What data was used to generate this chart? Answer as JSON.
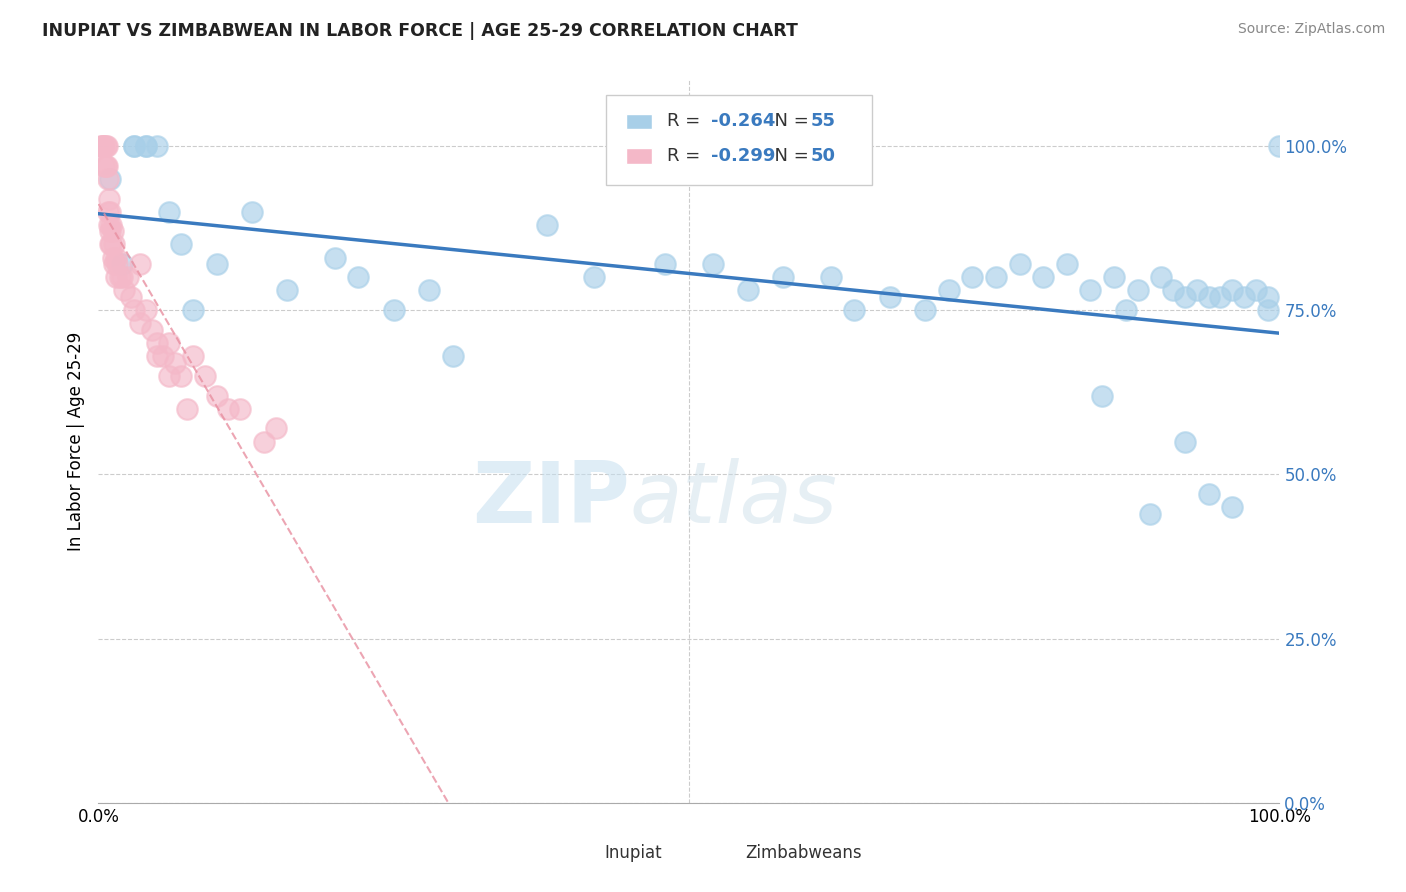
{
  "title": "INUPIAT VS ZIMBABWEAN IN LABOR FORCE | AGE 25-29 CORRELATION CHART",
  "source": "Source: ZipAtlas.com",
  "ylabel": "In Labor Force | Age 25-29",
  "legend_label1": "Inupiat",
  "legend_label2": "Zimbabweans",
  "R1": -0.264,
  "N1": 55,
  "R2": -0.299,
  "N2": 50,
  "blue_color": "#a8cfe8",
  "pink_color": "#f4b8c8",
  "trend_blue": "#3a7abf",
  "trend_pink": "#e88fa0",
  "blue_x": [
    0.01,
    0.02,
    0.03,
    0.03,
    0.04,
    0.04,
    0.05,
    0.06,
    0.07,
    0.08,
    0.1,
    0.13,
    0.16,
    0.2,
    0.22,
    0.25,
    0.28,
    0.3,
    0.38,
    0.42,
    0.48,
    0.52,
    0.55,
    0.58,
    0.62,
    0.64,
    0.67,
    0.7,
    0.72,
    0.74,
    0.76,
    0.78,
    0.8,
    0.82,
    0.84,
    0.86,
    0.88,
    0.9,
    0.91,
    0.92,
    0.93,
    0.94,
    0.95,
    0.96,
    0.97,
    0.98,
    0.99,
    1.0,
    0.85,
    0.87,
    0.89,
    0.92,
    0.94,
    0.96,
    0.99
  ],
  "blue_y": [
    0.95,
    0.82,
    1.0,
    1.0,
    1.0,
    1.0,
    1.0,
    0.9,
    0.85,
    0.75,
    0.82,
    0.9,
    0.78,
    0.83,
    0.8,
    0.75,
    0.78,
    0.68,
    0.88,
    0.8,
    0.82,
    0.82,
    0.78,
    0.8,
    0.8,
    0.75,
    0.77,
    0.75,
    0.78,
    0.8,
    0.8,
    0.82,
    0.8,
    0.82,
    0.78,
    0.8,
    0.78,
    0.8,
    0.78,
    0.77,
    0.78,
    0.77,
    0.77,
    0.78,
    0.77,
    0.78,
    0.77,
    1.0,
    0.62,
    0.75,
    0.44,
    0.55,
    0.47,
    0.45,
    0.75
  ],
  "pink_x": [
    0.002,
    0.003,
    0.004,
    0.005,
    0.005,
    0.006,
    0.006,
    0.007,
    0.007,
    0.008,
    0.008,
    0.009,
    0.009,
    0.01,
    0.01,
    0.01,
    0.011,
    0.011,
    0.012,
    0.012,
    0.013,
    0.013,
    0.015,
    0.015,
    0.016,
    0.018,
    0.02,
    0.022,
    0.025,
    0.028,
    0.03,
    0.035,
    0.04,
    0.045,
    0.05,
    0.055,
    0.06,
    0.065,
    0.07,
    0.08,
    0.09,
    0.1,
    0.11,
    0.12,
    0.14,
    0.15,
    0.035,
    0.05,
    0.06,
    0.075
  ],
  "pink_y": [
    1.0,
    1.0,
    1.0,
    1.0,
    0.97,
    1.0,
    0.97,
    1.0,
    0.97,
    0.95,
    0.9,
    0.92,
    0.88,
    0.9,
    0.87,
    0.85,
    0.88,
    0.85,
    0.87,
    0.83,
    0.85,
    0.82,
    0.83,
    0.8,
    0.82,
    0.8,
    0.8,
    0.78,
    0.8,
    0.77,
    0.75,
    0.73,
    0.75,
    0.72,
    0.7,
    0.68,
    0.7,
    0.67,
    0.65,
    0.68,
    0.65,
    0.62,
    0.6,
    0.6,
    0.55,
    0.57,
    0.82,
    0.68,
    0.65,
    0.6
  ],
  "xlim": [
    0.0,
    1.0
  ],
  "ylim": [
    0.0,
    1.1
  ],
  "yticks": [
    0.0,
    0.25,
    0.5,
    0.75,
    1.0
  ],
  "ytick_labels": [
    "0.0%",
    "25.0%",
    "50.0%",
    "75.0%",
    "100.0%"
  ],
  "xtick_labels": [
    "0.0%",
    "100.0%"
  ],
  "background_color": "#ffffff",
  "grid_color": "#cccccc",
  "watermark_zip": "ZIP",
  "watermark_atlas": "atlas"
}
